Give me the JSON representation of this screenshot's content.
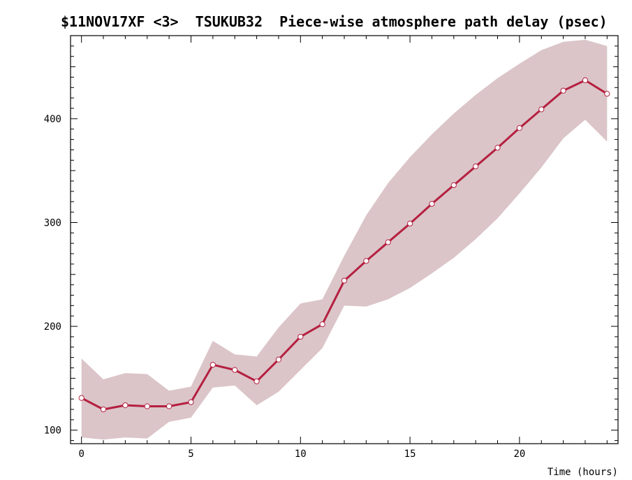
{
  "chart_data": {
    "type": "line",
    "title": "$11NOV17XF <3>  TSUKUB32  Piece-wise atmosphere path delay (psec)",
    "xlabel": "Time (hours)",
    "ylabel": "",
    "xlim": [
      -0.5,
      24.5
    ],
    "ylim": [
      87,
      480
    ],
    "x_ticks": [
      0,
      5,
      10,
      15,
      20
    ],
    "x_tick_labels": [
      "0",
      "5",
      "10",
      "15",
      "20"
    ],
    "y_ticks": [
      100,
      200,
      300,
      400
    ],
    "y_tick_labels": [
      "100",
      "200",
      "300",
      "400"
    ],
    "grid": false,
    "legend": "none",
    "colors": {
      "line": "#b5203f",
      "band": "#dbc5c9",
      "marker_fill": "#ffffff"
    },
    "x": [
      0,
      1,
      2,
      3,
      4,
      5,
      6,
      7,
      8,
      9,
      10,
      11,
      12,
      13,
      14,
      15,
      16,
      17,
      18,
      19,
      20,
      21,
      22,
      23,
      24
    ],
    "series": [
      {
        "values": [
          131,
          120,
          124,
          123,
          123,
          127,
          163,
          158,
          147,
          168,
          190,
          202,
          244,
          263,
          281,
          299,
          318,
          336,
          354,
          372,
          391,
          409,
          427,
          437,
          424
        ]
      }
    ],
    "band_upper": [
      169,
      149,
      155,
      154,
      138,
      142,
      186,
      173,
      171,
      199,
      222,
      226,
      268,
      307,
      338,
      363,
      385,
      405,
      423,
      439,
      453,
      466,
      474,
      476,
      470
    ],
    "band_lower": [
      93,
      91,
      93,
      92,
      108,
      112,
      141,
      143,
      124,
      137,
      158,
      179,
      220,
      219,
      226,
      237,
      251,
      266,
      284,
      304,
      328,
      353,
      381,
      399,
      378
    ]
  }
}
